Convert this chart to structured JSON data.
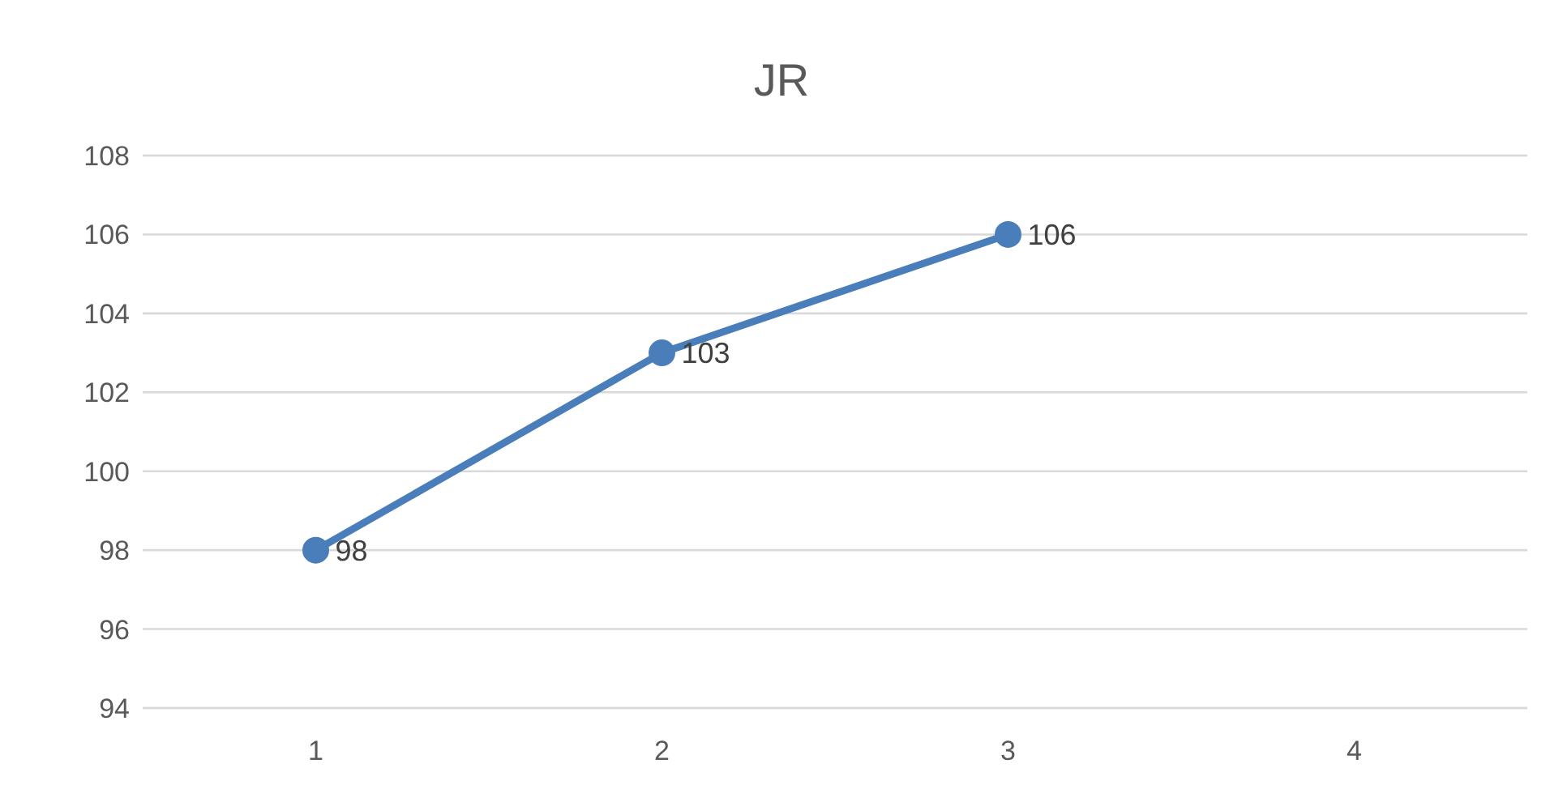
{
  "chart_data": {
    "type": "line",
    "title": "JR",
    "categories": [
      "1",
      "2",
      "3",
      "4"
    ],
    "series": [
      {
        "color": "#4a7ebb",
        "values": [
          98,
          103,
          106,
          null
        ]
      }
    ],
    "ylim": [
      94,
      108
    ],
    "yticks": [
      94,
      96,
      98,
      100,
      102,
      104,
      106,
      108
    ],
    "grid": "y",
    "marker": "circle",
    "data_labels": true
  }
}
